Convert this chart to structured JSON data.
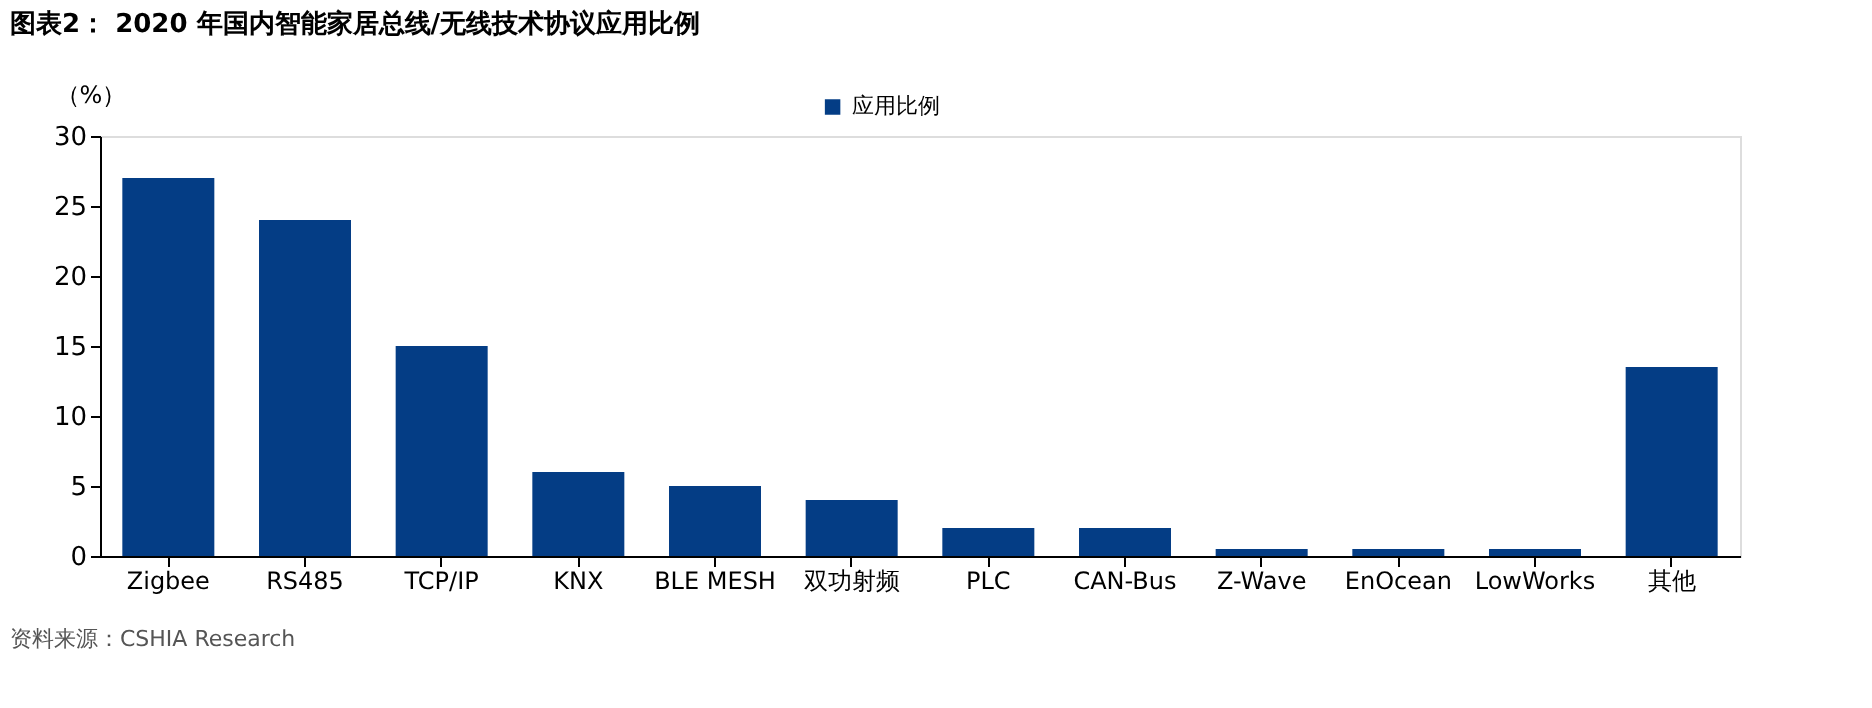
{
  "chart_data": {
    "type": "bar",
    "title": "图表2：  2020 年国内智能家居总线/无线技术协议应用比例",
    "categories": [
      "Zigbee",
      "RS485",
      "TCP/IP",
      "KNX",
      "BLE MESH",
      "双功射频",
      "PLC",
      "CAN-Bus",
      "Z-Wave",
      "EnOcean",
      "LowWorks",
      "其他"
    ],
    "series": [
      {
        "name": "应用比例",
        "color": "#043d85",
        "values": [
          27,
          24,
          15,
          6,
          5,
          4,
          2,
          2,
          0.5,
          0.5,
          0.5,
          13.5
        ]
      }
    ],
    "ylabel": "（%）",
    "ylim": [
      0,
      30
    ],
    "yticks": [
      0,
      5,
      10,
      15,
      20,
      25,
      30
    ],
    "grid": false,
    "legend": "top",
    "annotations": [
      "资料来源：CSHIA Research"
    ]
  }
}
